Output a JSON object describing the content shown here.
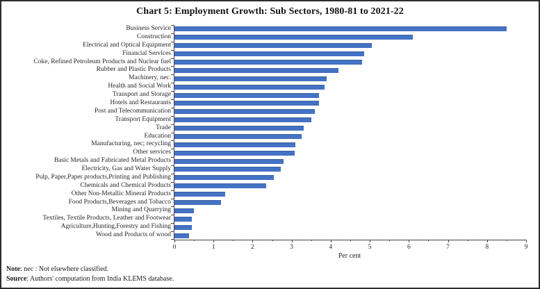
{
  "figure": {
    "title": "Chart 5: Employment Growth: Sub Sectors, 1980-81 to 2021-22",
    "note_label": "Note",
    "note_text": ": nec : Not elsewhere classified.",
    "source_label": "Source",
    "source_text": ": Authors' computation from India KLEMS database."
  },
  "chart_data": {
    "type": "bar",
    "orientation": "horizontal",
    "title": "Chart 5: Employment Growth: Sub Sectors, 1980-81 to 2021-22",
    "xlabel": "Per cent",
    "ylabel": "",
    "xlim": [
      0,
      9
    ],
    "x_ticks": [
      0,
      1,
      2,
      3,
      4,
      5,
      6,
      7,
      8,
      9
    ],
    "minor_tick_step": 0.5,
    "grid": false,
    "legend": false,
    "bar_color": "#4472c4",
    "categories": [
      "Business Service",
      "Construction",
      "Electrical and Optical Equipment",
      "Financial Services",
      "Coke, Refined Petroleum Products and Nuclear fuel",
      "Rubber and Plastic Products",
      "Machinery, nec.",
      "Health and Social Work",
      "Transport and Storage",
      "Hotels and Restaurants",
      "Post and Telecommunication",
      "Transport Equipment",
      "Trade",
      "Education",
      "Manufacturing, nec; recycling",
      "Other services",
      "Basic Metals and Fabricated Metal Products",
      "Electricity, Gas and Water Supply",
      "Pulp, Paper,Paper products,Printing and Publishing",
      "Chemicals and Chemical Products",
      "Other Non-Metallic Mineral Products",
      "Food Products,Beverages and Tobacco",
      "Mining and Quarrying",
      "Textiles, Textile Products, Leather and Footwear",
      "Agriculture,Hunting,Forestry and Fishing",
      "Wood and Products of wood"
    ],
    "values": [
      8.5,
      6.1,
      5.05,
      4.85,
      4.8,
      4.2,
      3.9,
      3.85,
      3.7,
      3.7,
      3.6,
      3.5,
      3.3,
      3.25,
      3.1,
      3.08,
      2.8,
      2.72,
      2.55,
      2.35,
      1.3,
      1.2,
      0.5,
      0.45,
      0.45,
      0.37
    ]
  }
}
